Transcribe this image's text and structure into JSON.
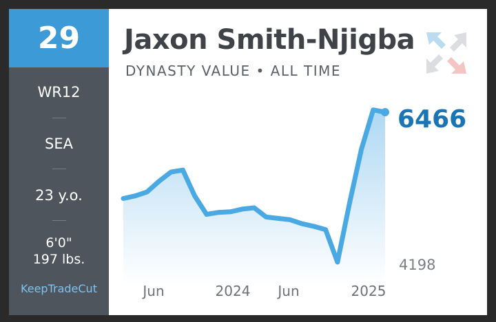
{
  "card": {
    "rank": "29",
    "player_name": "Jaxon Smith-Njigba",
    "subtitle": "DYNASTY VALUE • ALL TIME",
    "position_rank": "WR12",
    "team": "SEA",
    "age": "23 y.o.",
    "height": "6'0\"",
    "weight": "197 lbs.",
    "brand": "KeepTradeCut",
    "logo_icon": "ktc-arrows-icon"
  },
  "colors": {
    "accent_blue": "#3c9bd6",
    "value_blue": "#1b75b5",
    "line_blue": "#4aa8e3",
    "sidebar": "#4f555c"
  },
  "chart_data": {
    "type": "area",
    "title": "Jaxon Smith-Njigba",
    "subtitle": "DYNASTY VALUE • ALL TIME",
    "current_value": "6466",
    "min_value_label": "4198",
    "x_ticks": [
      "Jun",
      "2024",
      "Jun",
      "2025"
    ],
    "x": [
      "2023-04",
      "2023-05",
      "2023-06",
      "2023-07",
      "2023-08",
      "2023-09",
      "2023-10",
      "2023-11",
      "2023-12",
      "2024-01",
      "2024-02",
      "2024-03",
      "2024-04",
      "2024-05",
      "2024-06",
      "2024-07",
      "2024-08",
      "2024-09",
      "2024-10",
      "2024-11",
      "2024-12",
      "2025-01",
      "2025-02"
    ],
    "y": [
      5160,
      5200,
      5260,
      5420,
      5560,
      5590,
      5200,
      4920,
      4950,
      4960,
      5000,
      5020,
      4880,
      4860,
      4840,
      4780,
      4740,
      4690,
      4198,
      5080,
      5900,
      6500,
      6466
    ],
    "ylim": [
      4198,
      6466
    ],
    "grid": false,
    "legend": "none"
  }
}
